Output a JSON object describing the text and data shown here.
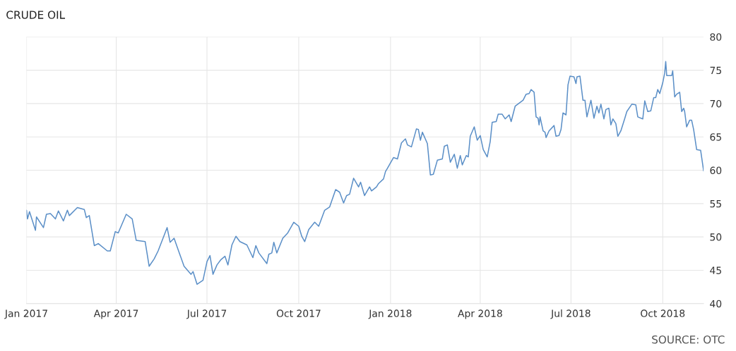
{
  "chart_data": {
    "type": "line",
    "title": "CRUDE OIL",
    "annotations": [
      "SOURCE: OTC"
    ],
    "x": [
      "2017-01-01",
      "2017-01-02",
      "2017-01-04",
      "2017-01-10",
      "2017-01-11",
      "2017-01-18",
      "2017-01-21",
      "2017-01-25",
      "2017-01-30",
      "2017-02-02",
      "2017-02-07",
      "2017-02-11",
      "2017-02-13",
      "2017-02-21",
      "2017-02-28",
      "2017-03-02",
      "2017-03-05",
      "2017-03-10",
      "2017-03-14",
      "2017-03-23",
      "2017-03-26",
      "2017-03-31",
      "2017-04-03",
      "2017-04-11",
      "2017-04-17",
      "2017-04-21",
      "2017-04-30",
      "2017-05-04",
      "2017-05-09",
      "2017-05-13",
      "2017-05-22",
      "2017-05-25",
      "2017-05-29",
      "2017-06-03",
      "2017-06-08",
      "2017-06-15",
      "2017-06-17",
      "2017-06-21",
      "2017-06-27",
      "2017-07-01",
      "2017-07-04",
      "2017-07-07",
      "2017-07-11",
      "2017-07-15",
      "2017-07-19",
      "2017-07-22",
      "2017-07-26",
      "2017-07-30",
      "2017-08-03",
      "2017-08-10",
      "2017-08-16",
      "2017-08-19",
      "2017-08-22",
      "2017-08-30",
      "2017-09-01",
      "2017-09-04",
      "2017-09-06",
      "2017-09-09",
      "2017-09-15",
      "2017-09-20",
      "2017-09-26",
      "2017-10-01",
      "2017-10-04",
      "2017-10-07",
      "2017-10-11",
      "2017-10-17",
      "2017-10-21",
      "2017-10-23",
      "2017-10-27",
      "2017-11-01",
      "2017-11-07",
      "2017-11-11",
      "2017-11-15",
      "2017-11-18",
      "2017-11-21",
      "2017-11-25",
      "2017-11-30",
      "2017-12-02",
      "2017-12-06",
      "2017-12-11",
      "2017-12-13",
      "2017-12-18",
      "2017-12-20",
      "2017-12-25",
      "2017-12-27",
      "2017-12-29",
      "2018-01-04",
      "2018-01-08",
      "2018-01-12",
      "2018-01-16",
      "2018-01-18",
      "2018-01-22",
      "2018-01-27",
      "2018-01-29",
      "2018-01-31",
      "2018-02-02",
      "2018-02-07",
      "2018-02-10",
      "2018-02-13",
      "2018-02-17",
      "2018-02-22",
      "2018-02-24",
      "2018-02-27",
      "2018-03-02",
      "2018-03-06",
      "2018-03-09",
      "2018-03-12",
      "2018-03-14",
      "2018-03-18",
      "2018-03-20",
      "2018-03-22",
      "2018-03-26",
      "2018-03-29",
      "2018-04-01",
      "2018-04-04",
      "2018-04-08",
      "2018-04-11",
      "2018-04-13",
      "2018-04-17",
      "2018-04-19",
      "2018-04-23",
      "2018-04-26",
      "2018-04-30",
      "2018-05-02",
      "2018-05-06",
      "2018-05-14",
      "2018-05-17",
      "2018-05-20",
      "2018-05-22",
      "2018-05-25",
      "2018-05-27",
      "2018-05-29",
      "2018-05-30",
      "2018-05-31",
      "2018-06-03",
      "2018-06-05",
      "2018-06-06",
      "2018-06-09",
      "2018-06-14",
      "2018-06-16",
      "2018-06-19",
      "2018-06-21",
      "2018-06-23",
      "2018-06-26",
      "2018-06-28",
      "2018-06-30",
      "2018-07-04",
      "2018-07-06",
      "2018-07-07",
      "2018-07-10",
      "2018-07-13",
      "2018-07-15",
      "2018-07-17",
      "2018-07-21",
      "2018-07-24",
      "2018-07-27",
      "2018-07-29",
      "2018-07-31",
      "2018-08-03",
      "2018-08-05",
      "2018-08-08",
      "2018-08-10",
      "2018-08-12",
      "2018-08-15",
      "2018-08-17",
      "2018-08-20",
      "2018-08-24",
      "2018-08-26",
      "2018-08-31",
      "2018-09-04",
      "2018-09-06",
      "2018-09-11",
      "2018-09-13",
      "2018-09-16",
      "2018-09-19",
      "2018-09-22",
      "2018-09-24",
      "2018-09-26",
      "2018-09-28",
      "2018-10-01",
      "2018-10-03",
      "2018-10-04",
      "2018-10-05",
      "2018-10-10",
      "2018-10-11",
      "2018-10-13",
      "2018-10-15",
      "2018-10-18",
      "2018-10-20",
      "2018-10-22",
      "2018-10-23",
      "2018-10-25",
      "2018-10-28",
      "2018-10-30",
      "2018-11-01",
      "2018-11-04",
      "2018-11-08",
      "2018-11-11"
    ],
    "series": [
      {
        "color": "#5b8fc7",
        "values": [
          54.0,
          52.7,
          53.8,
          51.0,
          53.0,
          51.4,
          53.4,
          53.5,
          52.7,
          53.9,
          52.4,
          54.0,
          53.2,
          54.4,
          54.1,
          52.9,
          53.2,
          48.7,
          49.0,
          47.9,
          47.9,
          50.8,
          50.6,
          53.4,
          52.7,
          49.5,
          49.3,
          45.6,
          46.7,
          47.9,
          51.4,
          49.2,
          49.8,
          47.7,
          45.6,
          44.4,
          44.8,
          42.9,
          43.5,
          46.3,
          47.2,
          44.4,
          45.8,
          46.6,
          47.1,
          45.8,
          48.8,
          50.1,
          49.3,
          48.8,
          46.9,
          48.7,
          47.6,
          46.0,
          47.4,
          47.6,
          49.2,
          47.6,
          49.8,
          50.6,
          52.2,
          51.6,
          50.1,
          49.3,
          51.1,
          52.2,
          51.6,
          52.4,
          54.0,
          54.5,
          57.1,
          56.7,
          55.1,
          56.2,
          56.4,
          58.8,
          57.5,
          58.2,
          56.2,
          57.5,
          56.9,
          57.5,
          58.0,
          58.7,
          59.8,
          60.3,
          61.9,
          61.7,
          64.1,
          64.7,
          63.8,
          63.5,
          66.2,
          66.1,
          64.5,
          65.7,
          64.0,
          59.3,
          59.4,
          61.5,
          61.7,
          63.6,
          63.8,
          61.2,
          62.4,
          60.3,
          62.2,
          60.8,
          62.2,
          62.0,
          65.1,
          66.5,
          64.5,
          65.2,
          63.1,
          62.0,
          64.3,
          67.2,
          67.3,
          68.4,
          68.4,
          67.7,
          68.3,
          67.3,
          69.6,
          70.5,
          71.4,
          71.5,
          72.1,
          71.7,
          68.0,
          67.8,
          66.8,
          68.0,
          65.9,
          65.7,
          64.9,
          65.9,
          66.7,
          65.1,
          65.2,
          66.1,
          68.6,
          68.3,
          72.8,
          74.1,
          74.0,
          73.0,
          74.0,
          74.1,
          70.5,
          70.5,
          68.0,
          70.5,
          67.8,
          69.6,
          68.6,
          69.9,
          67.7,
          69.1,
          69.3,
          66.8,
          67.7,
          67.0,
          65.1,
          65.9,
          67.8,
          68.8,
          69.9,
          69.8,
          68.0,
          67.7,
          70.4,
          68.8,
          68.9,
          70.9,
          70.9,
          72.1,
          71.5,
          73.1,
          74.6,
          76.3,
          74.2,
          74.2,
          74.9,
          71.0,
          71.4,
          71.7,
          68.8,
          69.3,
          68.8,
          66.5,
          67.5,
          67.5,
          66.1,
          63.1,
          63.0,
          59.9
        ]
      }
    ],
    "xlim": [
      "2017-01-01",
      "2018-11-11"
    ],
    "xticks": [
      {
        "value": "2017-01-01",
        "label": "Jan 2017"
      },
      {
        "value": "2017-04-01",
        "label": "Apr 2017"
      },
      {
        "value": "2017-07-01",
        "label": "Jul 2017"
      },
      {
        "value": "2017-10-01",
        "label": "Oct 2017"
      },
      {
        "value": "2018-01-01",
        "label": "Jan 2018"
      },
      {
        "value": "2018-04-01",
        "label": "Apr 2018"
      },
      {
        "value": "2018-07-01",
        "label": "Jul 2018"
      },
      {
        "value": "2018-10-01",
        "label": "Oct 2018"
      }
    ],
    "ylim": [
      40,
      80
    ],
    "yticks": [
      40,
      45,
      50,
      55,
      60,
      65,
      70,
      75,
      80
    ],
    "grid": true,
    "legend": false,
    "marker": "none",
    "line_style": "solid"
  }
}
